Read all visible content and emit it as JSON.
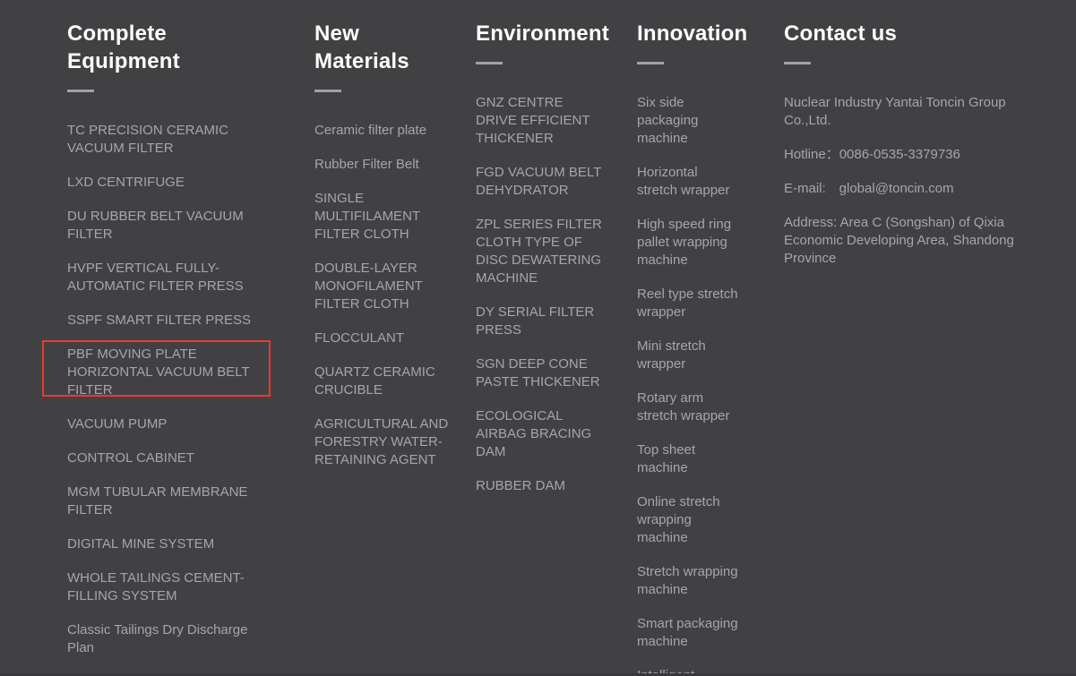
{
  "theme": {
    "background": "#414144",
    "heading_color": "#ffffff",
    "link_color": "#a6a6a8",
    "divider_color": "#a2a2a4",
    "annotation_color": "#e9392f"
  },
  "columns": [
    {
      "title": "Complete Equipment",
      "items": [
        "TC PRECISION CERAMIC VACUUM FILTER",
        "LXD CENTRIFUGE",
        "DU RUBBER BELT VACUUM FILTER",
        "HVPF VERTICAL FULLY-AUTOMATIC FILTER PRESS",
        "SSPF SMART FILTER PRESS",
        "PBF MOVING PLATE HORIZONTAL VACUUM BELT FILTER",
        "VACUUM PUMP",
        "CONTROL CABINET",
        "MGM TUBULAR MEMBRANE FILTER",
        "DIGITAL MINE SYSTEM",
        "WHOLE TAILINGS CEMENT-FILLING SYSTEM",
        "Classic Tailings Dry Discharge Plan"
      ]
    },
    {
      "title": "New Materials",
      "items": [
        "Ceramic filter plate",
        "Rubber Filter Belt",
        "SINGLE MULTIFILAMENT FILTER CLOTH",
        "DOUBLE-LAYER MONOFILAMENT FILTER CLOTH",
        "FLOCCULANT",
        "QUARTZ CERAMIC CRUCIBLE",
        "AGRICULTURAL AND FORESTRY WATER-RETAINING AGENT"
      ]
    },
    {
      "title": "Environment",
      "items": [
        "GNZ CENTRE DRIVE EFFICIENT THICKENER",
        "FGD VACUUM BELT DEHYDRATOR",
        "ZPL SERIES FILTER CLOTH TYPE OF DISC DEWATERING MACHINE",
        "DY SERIAL FILTER PRESS",
        "SGN DEEP CONE PASTE THICKENER",
        "ECOLOGICAL AIRBAG BRACING DAM",
        "RUBBER DAM"
      ]
    },
    {
      "title": "Innovation",
      "items": [
        "Six side packaging machine",
        "Horizontal stretch wrapper",
        "High speed ring pallet wrapping machine",
        "Reel type stretch wrapper",
        "Mini stretch wrapper",
        "Rotary arm stretch wrapper",
        "Top sheet machine",
        "Online stretch wrapping machine",
        "Stretch wrapping machine",
        "Smart packaging machine",
        "Intelligent"
      ]
    }
  ],
  "contact": {
    "title": "Contact us",
    "lines": [
      "Nuclear Industry Yantai Toncin Group Co.,Ltd.",
      "Hotline：0086-0535-3379736",
      "E-mail:　global@toncin.com",
      "Address: Area C (Songshan) of Qixia Economic Developing Area, Shandong Province"
    ]
  },
  "annotation": {
    "highlighted_item": "PBF MOVING PLATE HORIZONTAL VACUUM BELT FILTER"
  }
}
